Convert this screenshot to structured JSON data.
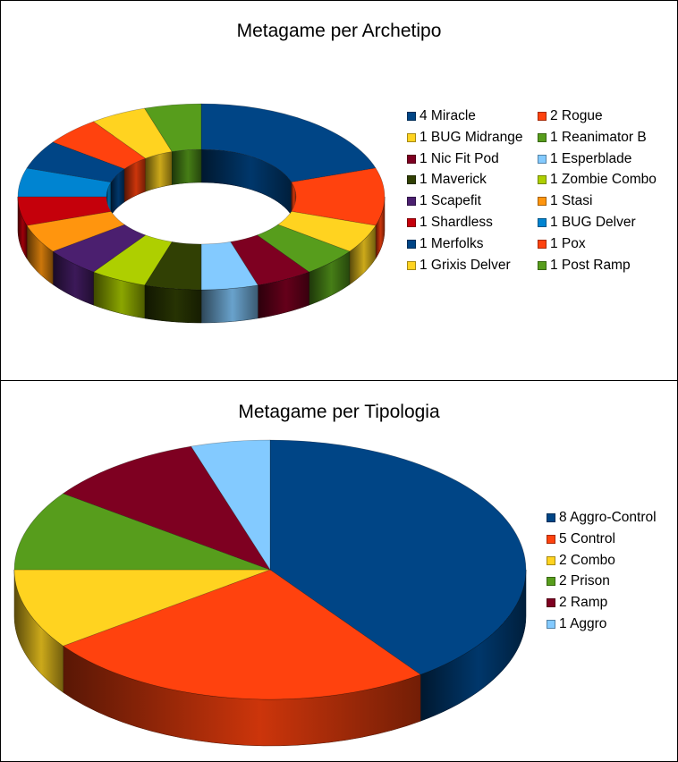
{
  "chart_data": [
    {
      "type": "pie",
      "style": "3d-donut",
      "title": "Metagame per Archetipo",
      "legend_position": "right",
      "slices": [
        {
          "label": "Miracle",
          "value": 4,
          "color": "#004586"
        },
        {
          "label": "Rogue",
          "value": 2,
          "color": "#ff420e"
        },
        {
          "label": "BUG Midrange",
          "value": 1,
          "color": "#ffd320"
        },
        {
          "label": "Reanimator B",
          "value": 1,
          "color": "#579d1c"
        },
        {
          "label": "Nic Fit Pod",
          "value": 1,
          "color": "#7e0021"
        },
        {
          "label": "Esperblade",
          "value": 1,
          "color": "#83caff"
        },
        {
          "label": "Maverick",
          "value": 1,
          "color": "#314004"
        },
        {
          "label": "Zombie Combo",
          "value": 1,
          "color": "#aecf00"
        },
        {
          "label": "Scapefit",
          "value": 1,
          "color": "#4b1f6f"
        },
        {
          "label": "Stasi",
          "value": 1,
          "color": "#ff950e"
        },
        {
          "label": "Shardless",
          "value": 1,
          "color": "#c5000b"
        },
        {
          "label": "BUG Delver",
          "value": 1,
          "color": "#0084d1"
        },
        {
          "label": "Merfolks",
          "value": 1,
          "color": "#004586"
        },
        {
          "label": "Pox",
          "value": 1,
          "color": "#ff420e"
        },
        {
          "label": "Grixis Delver",
          "value": 1,
          "color": "#ffd320"
        },
        {
          "label": "Post Ramp",
          "value": 1,
          "color": "#579d1c"
        }
      ],
      "legend_labels": [
        "4 Miracle",
        "2 Rogue",
        "1 BUG Midrange",
        "1 Reanimator B",
        "1 Nic Fit Pod",
        "1 Esperblade",
        "1 Maverick",
        "1 Zombie Combo",
        "1 Scapefit",
        "1 Stasi",
        "1 Shardless",
        "1 BUG Delver",
        "1 Merfolks",
        "1 Pox",
        "1 Grixis Delver",
        "1 Post Ramp"
      ]
    },
    {
      "type": "pie",
      "style": "3d-pie",
      "title": "Metagame per Tipologia",
      "legend_position": "right",
      "slices": [
        {
          "label": "Aggro-Control",
          "value": 8,
          "color": "#004586"
        },
        {
          "label": "Control",
          "value": 5,
          "color": "#ff420e"
        },
        {
          "label": "Combo",
          "value": 2,
          "color": "#ffd320"
        },
        {
          "label": "Prison",
          "value": 2,
          "color": "#579d1c"
        },
        {
          "label": "Ramp",
          "value": 2,
          "color": "#7e0021"
        },
        {
          "label": "Aggro",
          "value": 1,
          "color": "#83caff"
        }
      ],
      "legend_labels": [
        "8 Aggro-Control",
        "5 Control",
        "2 Combo",
        "2 Prison",
        "2 Ramp",
        "1 Aggro"
      ]
    }
  ]
}
